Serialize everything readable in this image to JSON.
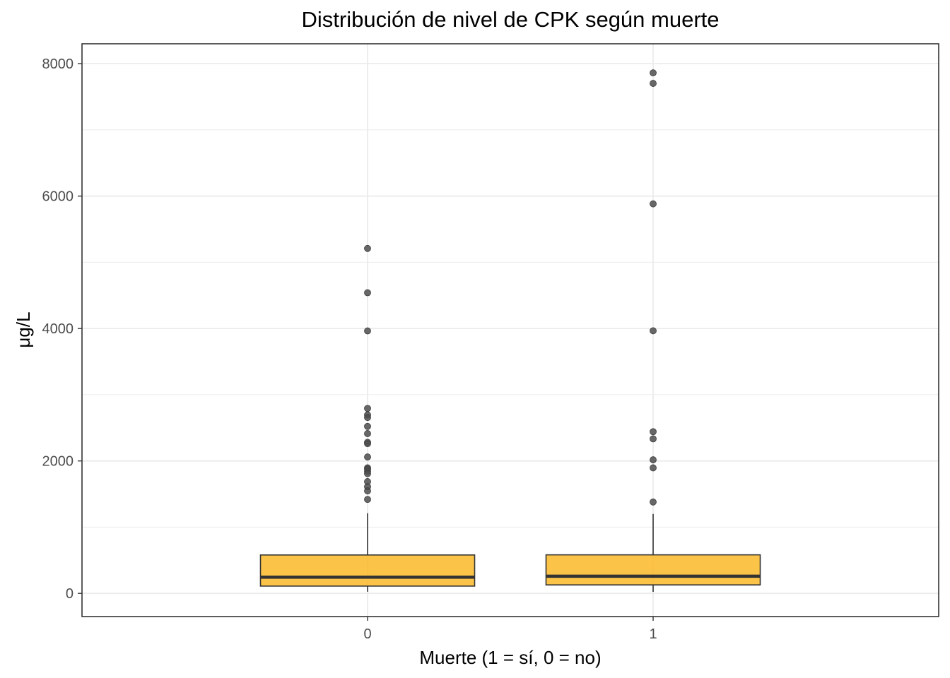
{
  "chart_data": {
    "type": "box",
    "title": "Distribución de nivel de CPK según muerte",
    "xlabel": "Muerte (1 = sí, 0 = no)",
    "ylabel": "μg/L",
    "ylim": [
      -350,
      8300
    ],
    "yticks": [
      0,
      2000,
      4000,
      6000,
      8000
    ],
    "grid": true,
    "categories": [
      "0",
      "1"
    ],
    "colors": {
      "box_fill": "#FBB829",
      "box_stroke": "#333333",
      "outlier": "#4d4d4d",
      "grid": "#ebebeb",
      "panel_border": "#333333"
    },
    "boxes": [
      {
        "category": "0",
        "whisker_low": 25,
        "q1": 110,
        "median": 245,
        "q3": 580,
        "whisker_high": 1211,
        "outliers": [
          5209,
          4540,
          3964,
          2794,
          2695,
          2656,
          2522,
          2413,
          2281,
          2261,
          2060,
          1896,
          1876,
          1846,
          1808,
          1688,
          1610,
          1548,
          1419
        ]
      },
      {
        "category": "1",
        "whisker_low": 23,
        "q1": 128,
        "median": 259,
        "q3": 582,
        "whisker_high": 1199,
        "outliers": [
          7861,
          7702,
          5882,
          3966,
          2442,
          2334,
          2017,
          1896,
          1380
        ]
      }
    ]
  }
}
